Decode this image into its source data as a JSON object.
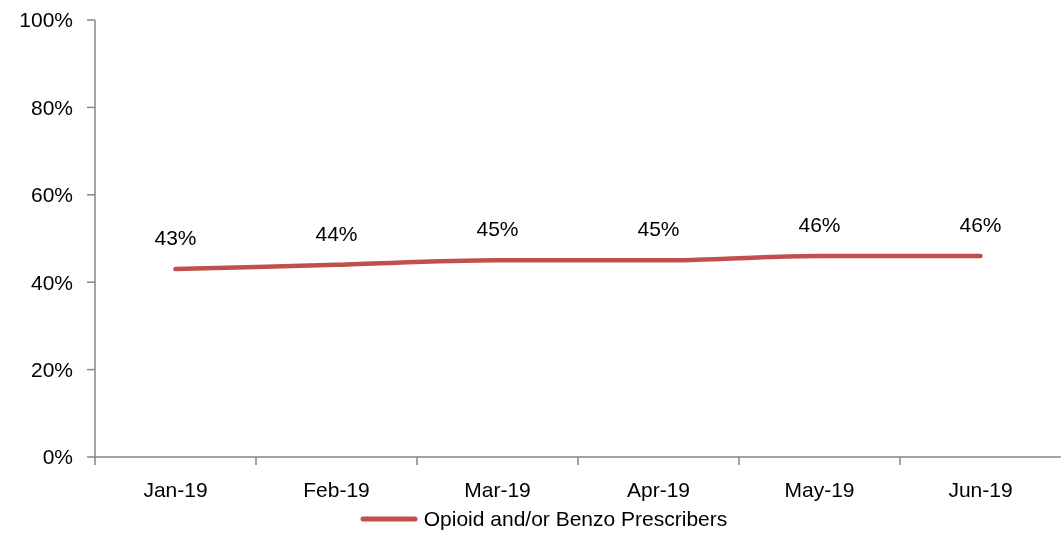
{
  "chart_data": {
    "type": "line",
    "categories": [
      "Jan-19",
      "Feb-19",
      "Mar-19",
      "Apr-19",
      "May-19",
      "Jun-19"
    ],
    "series": [
      {
        "name": "Opioid and/or Benzo Prescribers",
        "color": "#c0504d",
        "values": [
          43,
          44,
          45,
          45,
          46,
          46
        ],
        "value_labels": [
          "43%",
          "44%",
          "45%",
          "45%",
          "46%",
          "46%"
        ]
      }
    ],
    "ylim": [
      0,
      100
    ],
    "yticks": [
      {
        "value": 0,
        "label": "0%"
      },
      {
        "value": 20,
        "label": "20%"
      },
      {
        "value": 40,
        "label": "40%"
      },
      {
        "value": 60,
        "label": "60%"
      },
      {
        "value": 80,
        "label": "80%"
      },
      {
        "value": 100,
        "label": "100%"
      }
    ],
    "legend": "bottom",
    "marker": "none",
    "line_style": "solid"
  }
}
